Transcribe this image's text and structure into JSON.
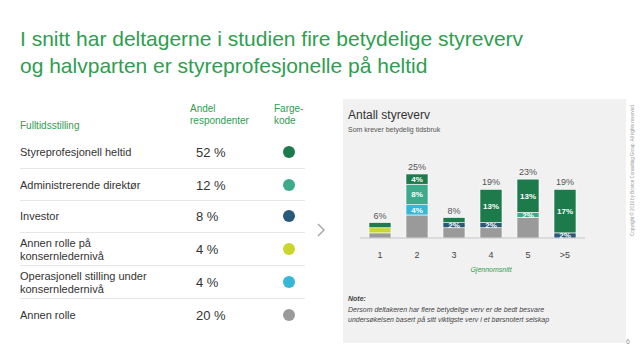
{
  "title": [
    "I snitt har deltagerne i studien fire betydelige styreverv",
    "og halvparten er styreprofesjonelle på heltid"
  ],
  "table": {
    "header": [
      "Fulltidsstilling",
      "Andel\nrespondenter",
      "Farge-\nkode"
    ],
    "rows": [
      [
        "Styreprofesjonell heltid",
        "52 %"
      ],
      [
        "Administrerende direktør",
        "12 %"
      ],
      [
        "Investor",
        "8 %"
      ],
      [
        "Annen rolle på\nkonsernledernivå",
        "4 %"
      ],
      [
        "Operasjonell stilling under\nkonsernledernivå",
        "4 %"
      ],
      [
        "Annen rolle",
        "20 %"
      ]
    ]
  },
  "chart_data": {
    "type": "bar",
    "title": "Antall styreverv",
    "subtitle": "Som krever betydelig tidsbruk",
    "categories": [
      "1",
      "2",
      "3",
      "4",
      "5",
      ">5"
    ],
    "stacked": true,
    "data_labels": true,
    "tick_labels": "x",
    "ylim": [
      0,
      25
    ],
    "series": [
      {
        "color": "#1d7a4a",
        "values": [
          2,
          4,
          2,
          13,
          13,
          17
        ],
        "value_labels": [
          null,
          "4%",
          null,
          "13%",
          "13%",
          "17%"
        ]
      },
      {
        "color": "#3daa8c",
        "values": [
          0,
          8,
          0,
          0,
          2,
          0
        ],
        "value_labels": [
          null,
          "8%",
          null,
          null,
          "2%",
          null
        ]
      },
      {
        "color": "#2a5a78",
        "values": [
          0,
          0,
          2,
          2,
          0,
          2
        ],
        "value_labels": [
          null,
          null,
          "2%",
          "2%",
          null,
          "2%"
        ]
      },
      {
        "color": "#c8d62e",
        "values": [
          2,
          0,
          0,
          0,
          0,
          0
        ],
        "value_labels": [
          null,
          null,
          null,
          null,
          null,
          null
        ]
      },
      {
        "color": "#36b7d5",
        "values": [
          0,
          4,
          0,
          0,
          0,
          0
        ],
        "value_labels": [
          null,
          "4%",
          null,
          null,
          null,
          null
        ]
      },
      {
        "color": "#9a9a9a",
        "values": [
          2,
          9,
          4,
          4,
          8,
          0
        ],
        "value_labels": [
          null,
          null,
          null,
          null,
          null,
          null
        ]
      }
    ],
    "totals": [
      6,
      25,
      8,
      19,
      23,
      19
    ],
    "total_labels": [
      "6%",
      "25%",
      "8%",
      "19%",
      "23%",
      "19%"
    ],
    "annotations": [
      {
        "text": "Gjennomsnitt",
        "x": "4"
      }
    ]
  },
  "note": {
    "label": "Note:",
    "lines": [
      "Dersom deltakeren har flere betydelige verv er de bedt besvare",
      "undersøkelsen basert på sitt viktigste verv i et børsnotert selskap"
    ]
  },
  "copyright": "Copyright © 2019 by Boston Consulting Group. All rights reserved.",
  "page_number": "6"
}
